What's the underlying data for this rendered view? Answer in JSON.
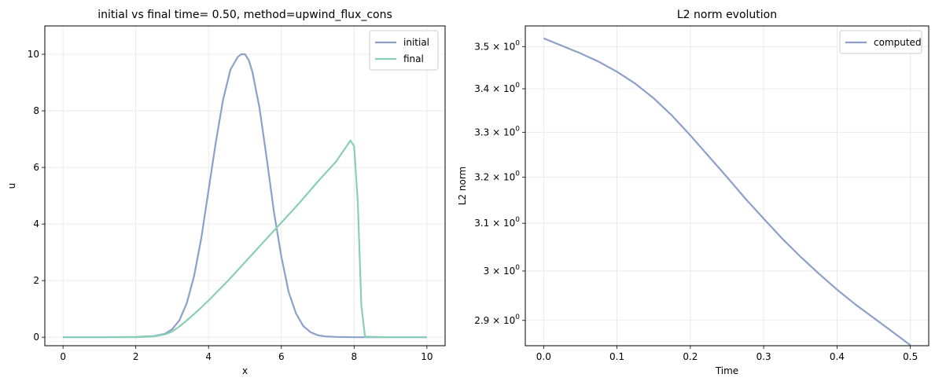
{
  "chart_data": [
    {
      "type": "line",
      "title": "initial vs final time= 0.50, method=upwind_flux_cons",
      "xlabel": "x",
      "ylabel": "u",
      "xlim": [
        -0.5,
        10.5
      ],
      "ylim": [
        -0.3,
        11.0
      ],
      "xticks": [
        0,
        2,
        4,
        6,
        8,
        10
      ],
      "yticks": [
        0,
        2,
        4,
        6,
        8,
        10
      ],
      "grid": true,
      "legend_position": "top-right",
      "series": [
        {
          "name": "initial",
          "color": "#8da0cb",
          "x": [
            0,
            1,
            2,
            2.5,
            2.8,
            3.0,
            3.2,
            3.4,
            3.6,
            3.8,
            4.0,
            4.2,
            4.4,
            4.6,
            4.8,
            4.9,
            5.0,
            5.1,
            5.2,
            5.4,
            5.6,
            5.8,
            6.0,
            6.2,
            6.4,
            6.6,
            6.8,
            7.0,
            7.2,
            7.5,
            8.0,
            9.0,
            10.0
          ],
          "y": [
            0,
            0,
            0.01,
            0.04,
            0.12,
            0.28,
            0.6,
            1.2,
            2.15,
            3.5,
            5.2,
            6.9,
            8.4,
            9.45,
            9.9,
            10.0,
            10.0,
            9.8,
            9.4,
            8.1,
            6.3,
            4.4,
            2.85,
            1.6,
            0.85,
            0.4,
            0.18,
            0.07,
            0.03,
            0.01,
            0,
            0,
            0
          ]
        },
        {
          "name": "final",
          "color": "#88cfb6",
          "x": [
            0,
            1,
            2,
            2.5,
            2.8,
            3.0,
            3.2,
            3.5,
            3.8,
            4.0,
            4.5,
            5.0,
            5.5,
            6.0,
            6.5,
            7.0,
            7.5,
            7.9,
            8.0,
            8.1,
            8.2,
            8.3,
            9.0,
            10.0
          ],
          "y": [
            0,
            0,
            0,
            0.03,
            0.1,
            0.2,
            0.38,
            0.7,
            1.05,
            1.3,
            1.95,
            2.65,
            3.35,
            4.05,
            4.75,
            5.5,
            6.2,
            6.95,
            6.75,
            4.8,
            1.1,
            0.02,
            0,
            0
          ]
        }
      ]
    },
    {
      "type": "line",
      "title": "L2 norm evolution",
      "xlabel": "Time",
      "ylabel": "L2 norm",
      "xlim": [
        -0.025,
        0.525
      ],
      "ylim": [
        2.85,
        3.55
      ],
      "yscale": "log",
      "xticks": [
        0.0,
        0.1,
        0.2,
        0.3,
        0.4,
        0.5
      ],
      "xtick_labels": [
        "0.0",
        "0.1",
        "0.2",
        "0.3",
        "0.4",
        "0.5"
      ],
      "yticks": [
        2.9,
        3.0,
        3.1,
        3.2,
        3.3,
        3.4,
        3.5
      ],
      "ytick_labels": [
        [
          "2.9",
          "0"
        ],
        [
          "3",
          "0"
        ],
        [
          "3.1",
          "0"
        ],
        [
          "3.2",
          "0"
        ],
        [
          "3.3",
          "0"
        ],
        [
          "3.4",
          "0"
        ],
        [
          "3.5",
          "0"
        ]
      ],
      "ytick_mult": "×",
      "ytick_base": "10",
      "grid": true,
      "legend_position": "top-right",
      "series": [
        {
          "name": "computed",
          "color": "#8da0cb",
          "x": [
            0.0,
            0.025,
            0.05,
            0.075,
            0.1,
            0.125,
            0.15,
            0.175,
            0.2,
            0.225,
            0.25,
            0.275,
            0.3,
            0.325,
            0.35,
            0.375,
            0.4,
            0.425,
            0.45,
            0.475,
            0.5
          ],
          "y": [
            3.52,
            3.502,
            3.484,
            3.464,
            3.44,
            3.412,
            3.378,
            3.338,
            3.293,
            3.246,
            3.2,
            3.153,
            3.11,
            3.068,
            3.03,
            2.995,
            2.962,
            2.932,
            2.905,
            2.878,
            2.851
          ]
        }
      ]
    }
  ]
}
